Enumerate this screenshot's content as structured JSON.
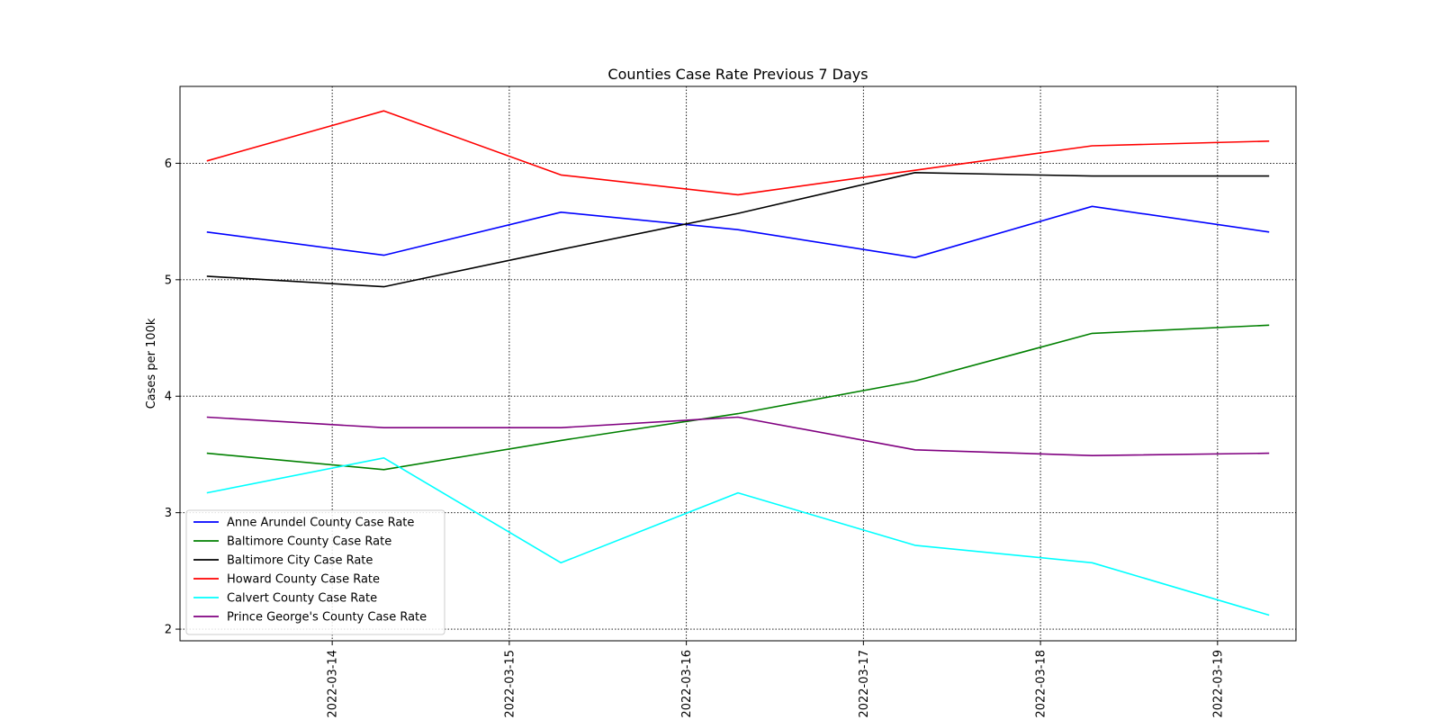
{
  "chart_data": {
    "type": "line",
    "title": "Counties Case Rate Previous 7 Days",
    "xlabel": "",
    "ylabel": "Cases per 100k",
    "x_dates": [
      "2022-03-13T07:00",
      "2022-03-14T07:00",
      "2022-03-15T07:00",
      "2022-03-16T07:00",
      "2022-03-17T07:00",
      "2022-03-18T07:00",
      "2022-03-19T07:00"
    ],
    "xlim": [
      "2022-03-13T03:22",
      "2022-03-19T10:38"
    ],
    "xticks": [
      "2022-03-14",
      "2022-03-15",
      "2022-03-16",
      "2022-03-17",
      "2022-03-18",
      "2022-03-19"
    ],
    "ylim": [
      1.9,
      6.66
    ],
    "yticks": [
      2,
      3,
      4,
      5,
      6
    ],
    "grid": true,
    "legend_position": "lower-left",
    "series": [
      {
        "name": "Anne Arundel County Case Rate",
        "color": "#0000ff",
        "values": [
          5.41,
          5.21,
          5.58,
          5.43,
          5.19,
          5.63,
          5.41
        ]
      },
      {
        "name": "Baltimore County Case Rate",
        "color": "#008000",
        "values": [
          3.51,
          3.37,
          3.62,
          3.85,
          4.13,
          4.54,
          4.61
        ]
      },
      {
        "name": "Baltimore City Case Rate",
        "color": "#000000",
        "values": [
          5.03,
          4.94,
          5.26,
          5.57,
          5.92,
          5.89,
          5.89
        ]
      },
      {
        "name": "Howard County Case Rate",
        "color": "#ff0000",
        "values": [
          6.02,
          6.45,
          5.9,
          5.73,
          5.94,
          6.15,
          6.19
        ]
      },
      {
        "name": "Calvert County Case Rate",
        "color": "#00ffff",
        "values": [
          3.17,
          3.47,
          2.57,
          3.17,
          2.72,
          2.57,
          2.12
        ]
      },
      {
        "name": "Prince George's County Case Rate",
        "color": "#800080",
        "values": [
          3.82,
          3.73,
          3.73,
          3.82,
          3.54,
          3.49,
          3.51
        ]
      }
    ]
  }
}
